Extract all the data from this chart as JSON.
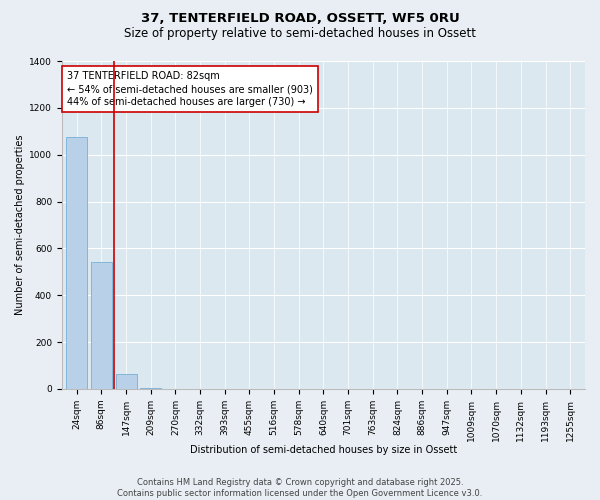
{
  "title": "37, TENTERFIELD ROAD, OSSETT, WF5 0RU",
  "subtitle": "Size of property relative to semi-detached houses in Ossett",
  "xlabel": "Distribution of semi-detached houses by size in Ossett",
  "ylabel": "Number of semi-detached properties",
  "categories": [
    "24sqm",
    "86sqm",
    "147sqm",
    "209sqm",
    "270sqm",
    "332sqm",
    "393sqm",
    "455sqm",
    "516sqm",
    "578sqm",
    "640sqm",
    "701sqm",
    "763sqm",
    "824sqm",
    "886sqm",
    "947sqm",
    "1009sqm",
    "1070sqm",
    "1132sqm",
    "1193sqm",
    "1255sqm"
  ],
  "values": [
    1075,
    540,
    65,
    5,
    2,
    1,
    0,
    0,
    0,
    0,
    0,
    0,
    0,
    0,
    0,
    0,
    0,
    0,
    0,
    0,
    0
  ],
  "bar_color": "#b8d0e8",
  "bar_edge_color": "#7aafd4",
  "highlight_index": 1,
  "highlight_color": "#cc0000",
  "annotation_text": "37 TENTERFIELD ROAD: 82sqm\n← 54% of semi-detached houses are smaller (903)\n44% of semi-detached houses are larger (730) →",
  "annotation_box_color": "#cc0000",
  "plot_bg_color": "#dce8f0",
  "fig_bg_color": "#e8eef4",
  "ylim": [
    0,
    1400
  ],
  "yticks": [
    0,
    200,
    400,
    600,
    800,
    1000,
    1200,
    1400
  ],
  "footer_line1": "Contains HM Land Registry data © Crown copyright and database right 2025.",
  "footer_line2": "Contains public sector information licensed under the Open Government Licence v3.0.",
  "title_fontsize": 9.5,
  "subtitle_fontsize": 8.5,
  "axis_label_fontsize": 7,
  "tick_fontsize": 6.5,
  "annotation_fontsize": 7,
  "footer_fontsize": 6
}
